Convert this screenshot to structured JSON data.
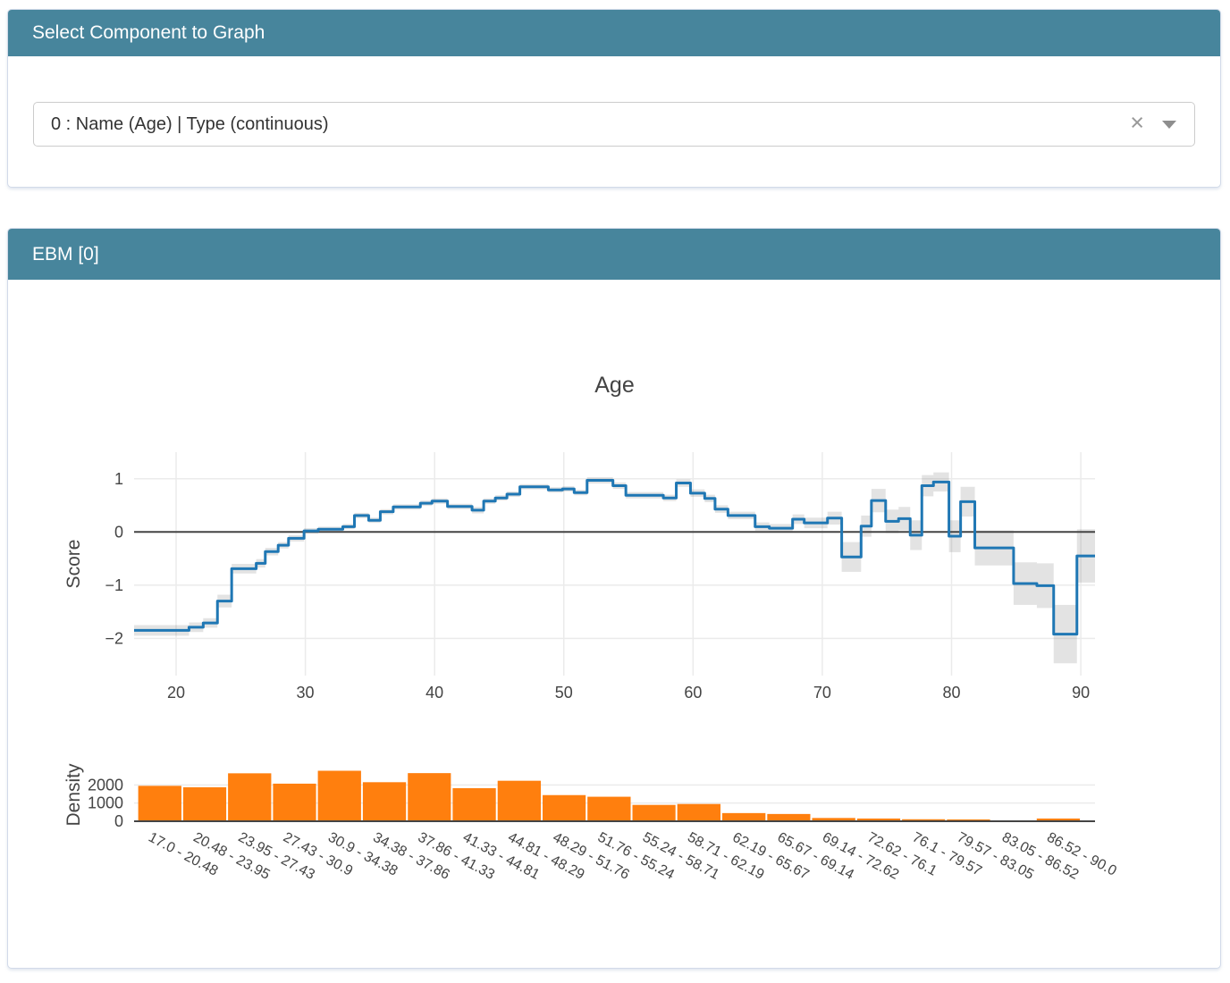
{
  "select_panel": {
    "title": "Select Component to Graph",
    "dropdown": {
      "value": "0 : Name (Age) | Type (continuous)",
      "clear_icon": "×"
    }
  },
  "ebm_panel": {
    "title": "EBM [0]"
  },
  "colors": {
    "header_bg": "#47859c",
    "header_text": "#ffffff",
    "line": "#1f77b4",
    "error_band": "rgba(68,68,68,0.15)",
    "bar": "#ff7f0e",
    "axis_text": "#444444",
    "grid": "#ebebeb",
    "zero_line": "#444444"
  },
  "chart_data": {
    "type": "line",
    "title": "Age",
    "subplots": "step-line score plot with error band above a density histogram",
    "line_chart": {
      "type": "line",
      "mode": "hv-step",
      "ylabel": "Score",
      "xlim": [
        16.75,
        91.1
      ],
      "ylim": [
        -2.7,
        1.5
      ],
      "x_ticks": [
        {
          "v": 20,
          "label": "20"
        },
        {
          "v": 30,
          "label": "30"
        },
        {
          "v": 40,
          "label": "40"
        },
        {
          "v": 50,
          "label": "50"
        },
        {
          "v": 60,
          "label": "60"
        },
        {
          "v": 70,
          "label": "70"
        },
        {
          "v": 80,
          "label": "80"
        },
        {
          "v": 90,
          "label": "90"
        }
      ],
      "y_ticks": [
        {
          "v": 1,
          "label": "1"
        },
        {
          "v": 0,
          "label": "0"
        },
        {
          "v": -1,
          "label": "−1"
        },
        {
          "v": -2,
          "label": "−2"
        }
      ],
      "segments_format": [
        "x_start",
        "x_end",
        "score",
        "error"
      ],
      "segments": [
        [
          16.75,
          21.0,
          -1.85,
          0.1
        ],
        [
          21.0,
          22.1,
          -1.79,
          0.09
        ],
        [
          22.1,
          23.2,
          -1.71,
          0.09
        ],
        [
          23.2,
          24.3,
          -1.3,
          0.12
        ],
        [
          24.3,
          26.2,
          -0.69,
          0.09
        ],
        [
          26.2,
          26.9,
          -0.59,
          0.08
        ],
        [
          26.9,
          27.9,
          -0.37,
          0.07
        ],
        [
          27.9,
          28.7,
          -0.25,
          0.06
        ],
        [
          28.7,
          29.9,
          -0.12,
          0.06
        ],
        [
          29.9,
          31.0,
          0.02,
          0.05
        ],
        [
          31.0,
          32.9,
          0.05,
          0.05
        ],
        [
          32.9,
          33.8,
          0.1,
          0.05
        ],
        [
          33.8,
          34.9,
          0.31,
          0.05
        ],
        [
          34.9,
          35.8,
          0.22,
          0.05
        ],
        [
          35.8,
          36.8,
          0.38,
          0.05
        ],
        [
          36.8,
          38.9,
          0.47,
          0.05
        ],
        [
          38.9,
          39.8,
          0.54,
          0.05
        ],
        [
          39.8,
          41.0,
          0.58,
          0.05
        ],
        [
          41.0,
          42.9,
          0.48,
          0.05
        ],
        [
          42.9,
          43.8,
          0.41,
          0.06
        ],
        [
          43.8,
          44.7,
          0.58,
          0.05
        ],
        [
          44.7,
          45.6,
          0.64,
          0.05
        ],
        [
          45.6,
          46.6,
          0.71,
          0.05
        ],
        [
          46.6,
          48.8,
          0.85,
          0.05
        ],
        [
          48.8,
          49.9,
          0.79,
          0.05
        ],
        [
          49.9,
          50.8,
          0.81,
          0.05
        ],
        [
          50.8,
          51.8,
          0.74,
          0.05
        ],
        [
          51.8,
          53.8,
          0.97,
          0.06
        ],
        [
          53.8,
          54.8,
          0.87,
          0.06
        ],
        [
          54.8,
          57.7,
          0.69,
          0.06
        ],
        [
          57.7,
          58.7,
          0.64,
          0.06
        ],
        [
          58.7,
          59.8,
          0.92,
          0.07
        ],
        [
          59.8,
          60.9,
          0.73,
          0.07
        ],
        [
          60.9,
          61.7,
          0.63,
          0.07
        ],
        [
          61.7,
          62.7,
          0.43,
          0.07
        ],
        [
          62.7,
          64.8,
          0.31,
          0.07
        ],
        [
          64.8,
          65.9,
          0.1,
          0.08
        ],
        [
          65.9,
          67.7,
          0.07,
          0.08
        ],
        [
          67.7,
          68.6,
          0.24,
          0.09
        ],
        [
          68.6,
          70.4,
          0.17,
          0.1
        ],
        [
          70.4,
          71.5,
          0.26,
          0.12
        ],
        [
          71.5,
          73.0,
          -0.47,
          0.28
        ],
        [
          73.0,
          73.8,
          0.11,
          0.2
        ],
        [
          73.8,
          74.9,
          0.59,
          0.22
        ],
        [
          74.9,
          75.9,
          0.2,
          0.22
        ],
        [
          75.9,
          76.8,
          0.25,
          0.22
        ],
        [
          76.8,
          77.7,
          -0.06,
          0.28
        ],
        [
          77.7,
          78.6,
          0.87,
          0.2
        ],
        [
          78.6,
          79.8,
          0.94,
          0.18
        ],
        [
          79.8,
          80.7,
          -0.08,
          0.3
        ],
        [
          80.7,
          81.8,
          0.57,
          0.28
        ],
        [
          81.8,
          84.8,
          -0.3,
          0.33
        ],
        [
          84.8,
          86.6,
          -0.97,
          0.4
        ],
        [
          86.6,
          87.9,
          -1.01,
          0.42
        ],
        [
          87.9,
          89.7,
          -1.92,
          0.55
        ],
        [
          89.7,
          91.1,
          -0.45,
          0.5
        ]
      ]
    },
    "histogram": {
      "type": "bar",
      "ylabel": "Density",
      "ylim": [
        0,
        3100
      ],
      "y_ticks": [
        {
          "v": 0,
          "label": "0"
        },
        {
          "v": 1000,
          "label": "1000"
        },
        {
          "v": 2000,
          "label": "2000"
        }
      ],
      "bin_edges": [
        17.0,
        20.48,
        23.95,
        27.43,
        30.9,
        34.38,
        37.86,
        41.33,
        44.81,
        48.29,
        51.76,
        55.24,
        58.71,
        62.19,
        65.67,
        69.14,
        72.62,
        76.1,
        79.57,
        83.05,
        86.52,
        90.0
      ],
      "bin_labels": [
        "17.0 - 20.48",
        "20.48 - 23.95",
        "23.95 - 27.43",
        "27.43 - 30.9",
        "30.9 - 34.38",
        "34.38 - 37.86",
        "37.86 - 41.33",
        "41.33 - 44.81",
        "44.81 - 48.29",
        "48.29 - 51.76",
        "51.76 - 55.24",
        "55.24 - 58.71",
        "58.71 - 62.19",
        "62.19 - 65.67",
        "65.67 - 69.14",
        "69.14 - 72.62",
        "72.62 - 76.1",
        "76.1 - 79.57",
        "79.57 - 83.05",
        "83.05 - 86.52",
        "86.52 - 90.0"
      ],
      "values": [
        1950,
        1870,
        2640,
        2070,
        2780,
        2150,
        2650,
        1820,
        2230,
        1440,
        1350,
        900,
        950,
        450,
        400,
        180,
        150,
        110,
        100,
        40,
        150
      ]
    }
  }
}
